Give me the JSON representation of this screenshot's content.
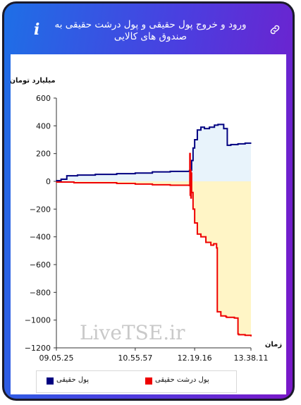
{
  "header": {
    "title": "ورود و خروج پول حقیقی و پول درشت حقیقی به صندوق های کالایی",
    "info_icon": "i",
    "link_icon": "link-icon"
  },
  "watermark": "LiveTSE.ir",
  "chart_data": {
    "type": "area",
    "ylabel": "میلیارد تومان",
    "xlabel": "زمان",
    "ylim": [
      -1200,
      600
    ],
    "yticks": [
      600,
      400,
      200,
      0,
      -200,
      -400,
      -600,
      -800,
      -1000,
      -1200
    ],
    "ytick_labels": [
      "600",
      "400",
      "200",
      "0",
      "−200",
      "−400",
      "−600",
      "−800",
      "−1000",
      "−1200"
    ],
    "x_range": [
      "09.05.25",
      "13.38.11"
    ],
    "xticks": [
      "09.05.25",
      "10.55.57",
      "12.19.16",
      "13.38.11"
    ],
    "series": [
      {
        "name": "پول حقیقی",
        "color": "#000080",
        "fill": "#e8f3fb",
        "x": [
          "09.05.25",
          "09.12.00",
          "09.20.00",
          "09.35.00",
          "10.00.00",
          "10.30.00",
          "10.55.57",
          "11.20.00",
          "11.45.00",
          "12.12.00",
          "12.13.30",
          "12.15.00",
          "12.17.00",
          "12.19.16",
          "12.23.00",
          "12.28.00",
          "12.33.00",
          "12.40.00",
          "12.47.00",
          "12.52.00",
          "13.00.00",
          "13.05.00",
          "13.10.00",
          "13.20.00",
          "13.30.00",
          "13.38.11"
        ],
        "values": [
          5,
          15,
          40,
          45,
          50,
          55,
          60,
          68,
          72,
          78,
          80,
          150,
          240,
          300,
          370,
          390,
          380,
          390,
          405,
          410,
          380,
          260,
          265,
          270,
          275,
          275
        ]
      },
      {
        "name": "پول درشت حقیقی",
        "color": "#ee0000",
        "fill": "#fff5c6",
        "x": [
          "09.05.25",
          "09.30.00",
          "10.00.00",
          "10.30.00",
          "10.55.57",
          "11.20.00",
          "11.45.00",
          "12.12.00",
          "12.12.30",
          "12.13.00",
          "12.13.30",
          "12.14.00",
          "12.14.30",
          "12.15.00",
          "12.17.00",
          "12.19.16",
          "12.23.00",
          "12.28.00",
          "12.35.00",
          "12.42.00",
          "12.46.00",
          "12.50.00",
          "12.51.00",
          "12.56.00",
          "13.03.00",
          "13.04.00",
          "13.10.00",
          "13.15.00",
          "13.20.00",
          "13.21.00",
          "13.30.00",
          "13.38.11"
        ],
        "values": [
          -5,
          -10,
          -10,
          -15,
          -20,
          -25,
          -28,
          -30,
          200,
          -100,
          80,
          -120,
          60,
          -80,
          -200,
          -300,
          -380,
          -400,
          -440,
          -460,
          -450,
          -480,
          -940,
          -970,
          -975,
          -980,
          -980,
          -985,
          -1100,
          -1105,
          -1110,
          -1115
        ]
      }
    ],
    "legend": [
      "پول حقیقی",
      "پول درشت حقیقی"
    ],
    "legend_position": "bottom",
    "grid": false
  }
}
